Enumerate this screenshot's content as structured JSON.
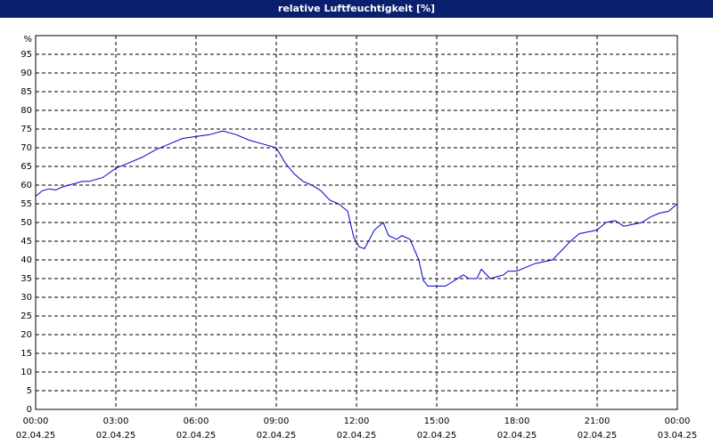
{
  "chart_data": {
    "type": "line",
    "title": "relative Luftfeuchtigkeit [%]",
    "ylabel": "%",
    "xlim": [
      0,
      24
    ],
    "ylim": [
      0,
      100
    ],
    "yticks": [
      0,
      5,
      10,
      15,
      20,
      25,
      30,
      35,
      40,
      45,
      50,
      55,
      60,
      65,
      70,
      75,
      80,
      85,
      90,
      95
    ],
    "xticks": [
      {
        "value": 0,
        "label": "00:00",
        "date": "02.04.25"
      },
      {
        "value": 3,
        "label": "03:00",
        "date": "02.04.25"
      },
      {
        "value": 6,
        "label": "06:00",
        "date": "02.04.25"
      },
      {
        "value": 9,
        "label": "09:00",
        "date": "02.04.25"
      },
      {
        "value": 12,
        "label": "12:00",
        "date": "02.04.25"
      },
      {
        "value": 15,
        "label": "15:00",
        "date": "02.04.25"
      },
      {
        "value": 18,
        "label": "18:00",
        "date": "02.04.25"
      },
      {
        "value": 21,
        "label": "21:00",
        "date": "02.04.25"
      },
      {
        "value": 24,
        "label": "00:00",
        "date": "03.04.25"
      }
    ],
    "grid": true,
    "series": [
      {
        "color": "#0000c8",
        "x": [
          0,
          0.25,
          0.5,
          0.75,
          1,
          1.5,
          1.75,
          2,
          2.5,
          3,
          3.5,
          4,
          4.5,
          5,
          5.5,
          6,
          6.5,
          7,
          7.5,
          8,
          8.5,
          9,
          9.33,
          9.67,
          10,
          10.33,
          10.67,
          11,
          11.33,
          11.67,
          11.9,
          12.1,
          12.3,
          12.67,
          13,
          13.2,
          13.5,
          13.7,
          14,
          14.33,
          14.5,
          14.67,
          15,
          15.33,
          15.67,
          16,
          16.2,
          16.5,
          16.67,
          17,
          17.5,
          17.67,
          18,
          18.33,
          18.67,
          19,
          19.33,
          19.67,
          20,
          20.33,
          20.67,
          21,
          21.33,
          21.67,
          22,
          22.33,
          22.67,
          23,
          23.33,
          23.67,
          24
        ],
        "values": [
          57,
          58.5,
          59,
          58.7,
          59.5,
          60.5,
          61,
          61,
          62,
          64.5,
          66,
          67.5,
          69.5,
          71,
          72.5,
          73,
          73.5,
          74.5,
          73.5,
          72,
          71,
          70,
          66,
          63,
          61,
          60,
          58.5,
          56,
          55,
          53,
          46,
          43.5,
          43,
          48,
          50,
          46.5,
          45.5,
          46.5,
          45.5,
          40,
          34.5,
          33,
          33,
          33,
          34.5,
          36,
          35,
          35,
          37.5,
          35,
          36,
          37,
          37,
          38,
          39,
          39.5,
          40,
          42.5,
          45,
          47,
          47.5,
          48,
          50,
          50.5,
          49,
          49.5,
          50,
          51.5,
          52.5,
          53,
          55
        ]
      }
    ]
  }
}
